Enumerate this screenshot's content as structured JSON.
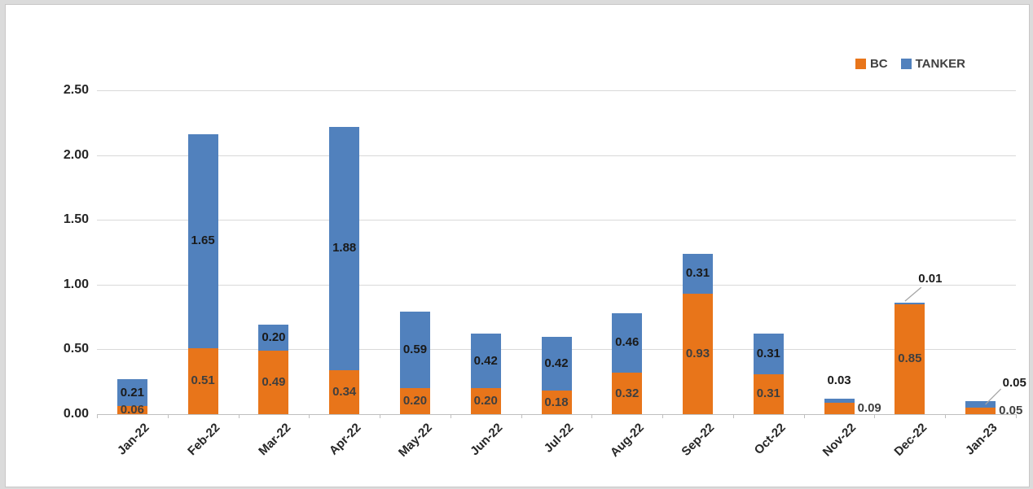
{
  "chart_data": {
    "type": "bar",
    "stacked": true,
    "title": "",
    "xlabel": "",
    "ylabel": "",
    "categories": [
      "Jan-22",
      "Feb-22",
      "Mar-22",
      "Apr-22",
      "May-22",
      "Jun-22",
      "Jul-22",
      "Aug-22",
      "Sep-22",
      "Oct-22",
      "Nov-22",
      "Dec-22",
      "Jan-23"
    ],
    "series": [
      {
        "name": "BC",
        "color": "#e8751a",
        "label_color": "#3f3f3f",
        "values": [
          0.06,
          0.51,
          0.49,
          0.34,
          0.2,
          0.2,
          0.18,
          0.32,
          0.93,
          0.31,
          0.09,
          0.85,
          0.05
        ]
      },
      {
        "name": "TANKER",
        "color": "#5181bd",
        "label_color": "#1a1a1a",
        "values": [
          0.21,
          1.65,
          0.2,
          1.88,
          0.59,
          0.42,
          0.42,
          0.46,
          0.31,
          0.31,
          0.03,
          0.01,
          0.05
        ]
      }
    ],
    "ylim": [
      0,
      2.5
    ],
    "ytick_step": 0.5,
    "yticks": [
      "0.00",
      "0.50",
      "1.00",
      "1.50",
      "2.00",
      "2.50"
    ],
    "grid": true,
    "legend_position": "top-right",
    "value_label_format": "0.00",
    "label_placements": {
      "BC": {
        "10": "right",
        "12": "right"
      },
      "TANKER": {
        "10": "above",
        "11": "above-leader",
        "12": "above-right-leader"
      }
    },
    "leader_line_color": "#a6a6a6",
    "gridline_color": "#d9d9d9",
    "axis_line_color": "#bfbfbf"
  }
}
